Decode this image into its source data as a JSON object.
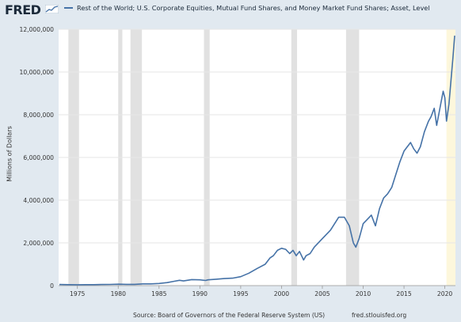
{
  "header": {
    "logo_text": "FRED",
    "legend_label": "Rest of the World; U.S. Corporate Equities, Mutual Fund Shares, and Money Market Fund Shares; Asset, Level"
  },
  "footer": {
    "source": "Source: Board of Governors of the Federal Reserve System (US)",
    "url": "fred.stlouisfed.org"
  },
  "colors": {
    "line": "#4572a7",
    "recession": "#e1e1e1",
    "highlight": "#fdf7dc",
    "plot_background": "#ffffff",
    "page_background": "#e1e9f0"
  },
  "chart_data": {
    "type": "line",
    "title": "",
    "xlabel": "",
    "ylabel": "Millions of Dollars",
    "x_range": [
      1972.7,
      2021.3
    ],
    "ylim": [
      0,
      12000000
    ],
    "x_ticks": [
      1975,
      1980,
      1985,
      1990,
      1995,
      2000,
      2005,
      2010,
      2015,
      2020
    ],
    "x_tick_labels": [
      "1975",
      "1980",
      "1985",
      "1990",
      "1995",
      "2000",
      "2005",
      "2010",
      "2015",
      "2020"
    ],
    "y_ticks": [
      0,
      2000000,
      4000000,
      6000000,
      8000000,
      10000000,
      12000000
    ],
    "y_tick_labels": [
      "0",
      "2,000,000",
      "4,000,000",
      "6,000,000",
      "8,000,000",
      "10,000,000",
      "12,000,000"
    ],
    "grid": "horizontal",
    "recessions": [
      [
        1973.9,
        1975.2
      ],
      [
        1980.0,
        1980.5
      ],
      [
        1981.5,
        1982.9
      ],
      [
        1990.5,
        1991.2
      ],
      [
        2001.2,
        2001.9
      ],
      [
        2007.9,
        2009.5
      ]
    ],
    "highlight_range": [
      2020.2,
      2021.3
    ],
    "series": [
      {
        "x": [
          1972.8,
          1974.0,
          1975.0,
          1976.0,
          1977.0,
          1978.0,
          1979.0,
          1980.0,
          1981.0,
          1982.0,
          1983.0,
          1984.0,
          1985.0,
          1986.0,
          1986.8,
          1987.5,
          1988.0,
          1989.0,
          1990.0,
          1990.7,
          1991.0,
          1992.0,
          1993.0,
          1994.0,
          1995.0,
          1996.0,
          1997.0,
          1998.0,
          1998.6,
          1999.0,
          1999.5,
          2000.0,
          2000.5,
          2001.0,
          2001.4,
          2001.8,
          2002.2,
          2002.7,
          2003.0,
          2003.5,
          2004.0,
          2005.0,
          2006.0,
          2007.0,
          2007.7,
          2008.3,
          2008.8,
          2009.1,
          2009.5,
          2010.0,
          2010.5,
          2011.0,
          2011.5,
          2012.0,
          2012.5,
          2013.0,
          2013.5,
          2014.0,
          2014.5,
          2015.0,
          2015.4,
          2015.8,
          2016.2,
          2016.6,
          2017.0,
          2017.5,
          2018.0,
          2018.3,
          2018.7,
          2019.0,
          2019.5,
          2019.8,
          2020.0,
          2020.2,
          2020.5,
          2020.8,
          2021.0,
          2021.2
        ],
        "values": [
          50000,
          45000,
          40000,
          45000,
          45000,
          50000,
          55000,
          65000,
          60000,
          60000,
          80000,
          80000,
          100000,
          140000,
          200000,
          250000,
          220000,
          280000,
          270000,
          240000,
          270000,
          300000,
          330000,
          350000,
          420000,
          580000,
          800000,
          1000000,
          1300000,
          1400000,
          1650000,
          1750000,
          1700000,
          1500000,
          1650000,
          1400000,
          1600000,
          1200000,
          1400000,
          1500000,
          1800000,
          2200000,
          2600000,
          3200000,
          3200000,
          2800000,
          2000000,
          1800000,
          2200000,
          2900000,
          3100000,
          3300000,
          2800000,
          3600000,
          4100000,
          4300000,
          4600000,
          5200000,
          5800000,
          6300000,
          6500000,
          6700000,
          6400000,
          6200000,
          6500000,
          7200000,
          7700000,
          7900000,
          8300000,
          7500000,
          8500000,
          9100000,
          8800000,
          7700000,
          8500000,
          9800000,
          10700000,
          11700000
        ]
      }
    ]
  }
}
